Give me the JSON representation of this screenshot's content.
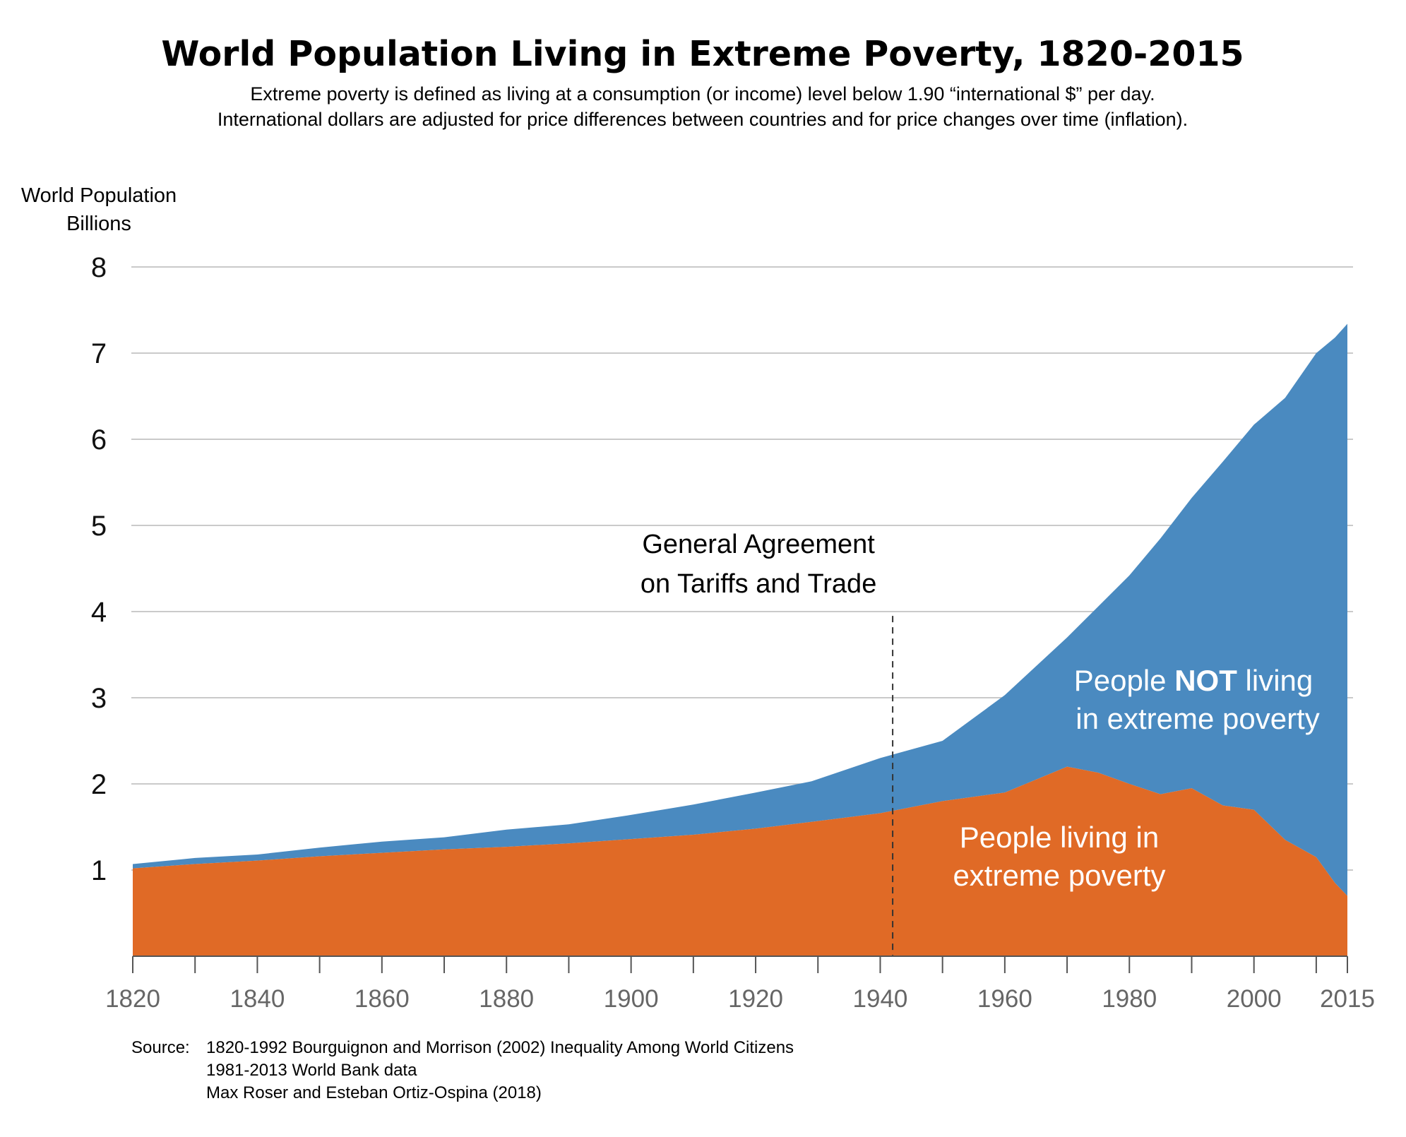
{
  "chart_data": {
    "type": "area",
    "title": "World Population Living in Extreme Poverty, 1820-2015",
    "subtitle_lines": [
      "Extreme poverty is defined as living at a consumption (or income) level below 1.90 “international $” per day.",
      "International dollars are adjusted for price differences between countries and for price changes over time (inflation)."
    ],
    "ylabel_lines": [
      "World Population",
      "Billions"
    ],
    "xlabel": "",
    "xlim": [
      1820,
      2015
    ],
    "ylim": [
      0,
      8
    ],
    "y_ticks": [
      "1",
      "2",
      "3",
      "4",
      "5",
      "6",
      "7",
      "8"
    ],
    "x_ticks": [
      "1820",
      "1840",
      "1860",
      "1880",
      "1900",
      "1920",
      "1940",
      "1960",
      "1980",
      "2000",
      "2015"
    ],
    "x": [
      1820,
      1830,
      1840,
      1850,
      1860,
      1870,
      1880,
      1890,
      1900,
      1910,
      1920,
      1929,
      1940,
      1950,
      1960,
      1970,
      1975,
      1980,
      1985,
      1990,
      1995,
      2000,
      2005,
      2010,
      2013,
      2015
    ],
    "series": [
      {
        "name": "People living in extreme poverty",
        "color": "#e06a26",
        "values": [
          1.02,
          1.07,
          1.11,
          1.16,
          1.2,
          1.24,
          1.27,
          1.31,
          1.36,
          1.41,
          1.48,
          1.56,
          1.66,
          1.8,
          1.9,
          2.2,
          2.13,
          2.0,
          1.88,
          1.95,
          1.75,
          1.7,
          1.35,
          1.15,
          0.85,
          0.7
        ]
      },
      {
        "name": "People NOT living in extreme poverty",
        "color": "#4a8ac0",
        "values": [
          0.05,
          0.07,
          0.07,
          0.1,
          0.13,
          0.14,
          0.2,
          0.22,
          0.28,
          0.35,
          0.42,
          0.47,
          0.64,
          0.7,
          1.13,
          1.5,
          1.93,
          2.42,
          2.97,
          3.37,
          3.99,
          4.47,
          5.13,
          5.85,
          6.33,
          6.64
        ]
      }
    ],
    "total_population": [
      1.07,
      1.14,
      1.18,
      1.26,
      1.33,
      1.38,
      1.47,
      1.53,
      1.64,
      1.76,
      1.9,
      2.03,
      2.3,
      2.5,
      3.03,
      3.7,
      4.06,
      4.42,
      4.85,
      5.32,
      5.74,
      6.17,
      6.48,
      7.0,
      7.18,
      7.34
    ],
    "annotation": {
      "lines": [
        "General Agreement",
        "on Tariffs and Trade"
      ],
      "x": 1942
    },
    "area_labels": {
      "not_poor": {
        "part1": "People ",
        "bold": "NOT",
        "part2": " living",
        "line2": "in extreme poverty"
      },
      "poor": {
        "line1": "People living in",
        "line2": "extreme poverty"
      }
    },
    "source": {
      "prefix": "Source:",
      "lines": [
        "1820-1992 Bourguignon and Morrison (2002) Inequality Among World Citizens",
        "1981-2013 World Bank data",
        "Max Roser and Esteban Ortiz-Ospina (2018)"
      ]
    },
    "grid": true
  }
}
